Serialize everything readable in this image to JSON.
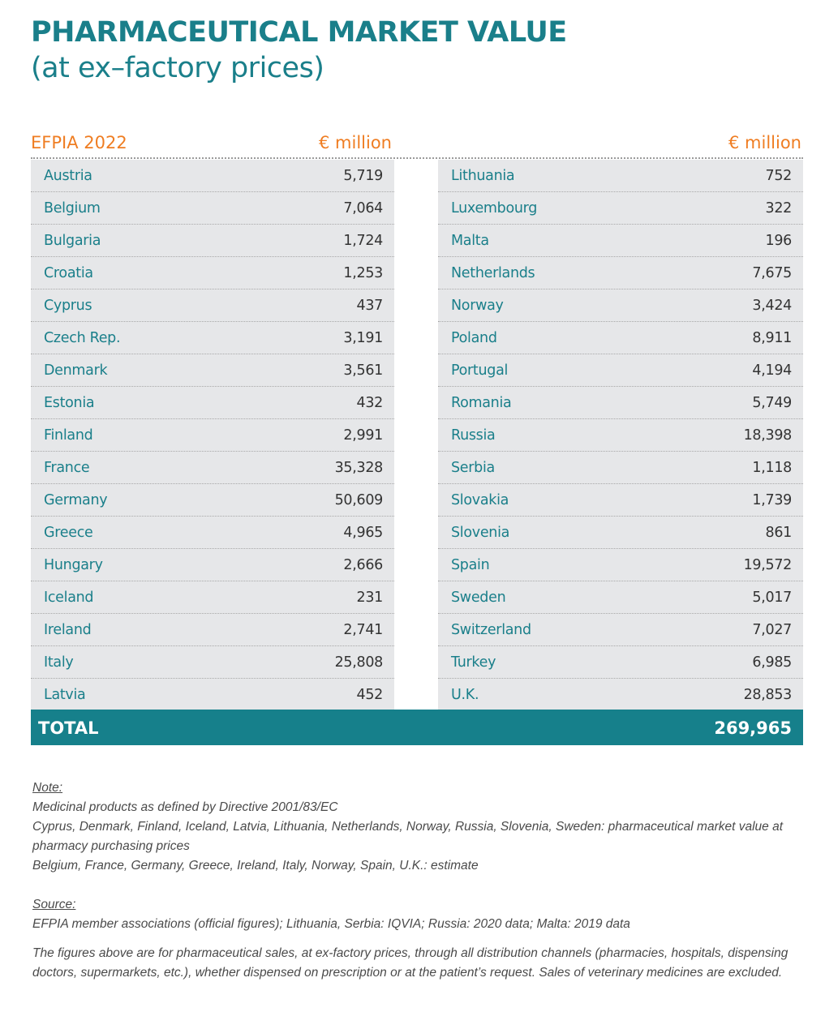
{
  "title": {
    "line1": "PHARMACEUTICAL MARKET VALUE",
    "line2": "(at ex–factory prices)"
  },
  "header": {
    "source_label": "EFPIA 2022",
    "unit_left": "€ million",
    "unit_right": "€ million"
  },
  "left_rows": [
    {
      "country": "Austria",
      "value": "5,719"
    },
    {
      "country": "Belgium",
      "value": "7,064"
    },
    {
      "country": "Bulgaria",
      "value": "1,724"
    },
    {
      "country": "Croatia",
      "value": "1,253"
    },
    {
      "country": "Cyprus",
      "value": "437"
    },
    {
      "country": "Czech Rep.",
      "value": "3,191"
    },
    {
      "country": "Denmark",
      "value": "3,561"
    },
    {
      "country": "Estonia",
      "value": "432"
    },
    {
      "country": "Finland",
      "value": "2,991"
    },
    {
      "country": "France",
      "value": "35,328"
    },
    {
      "country": "Germany",
      "value": "50,609"
    },
    {
      "country": "Greece",
      "value": "4,965"
    },
    {
      "country": "Hungary",
      "value": "2,666"
    },
    {
      "country": "Iceland",
      "value": "231"
    },
    {
      "country": "Ireland",
      "value": "2,741"
    },
    {
      "country": "Italy",
      "value": "25,808"
    },
    {
      "country": "Latvia",
      "value": "452"
    }
  ],
  "right_rows": [
    {
      "country": "Lithuania",
      "value": "752"
    },
    {
      "country": "Luxembourg",
      "value": "322"
    },
    {
      "country": "Malta",
      "value": "196"
    },
    {
      "country": "Netherlands",
      "value": "7,675"
    },
    {
      "country": "Norway",
      "value": "3,424"
    },
    {
      "country": "Poland",
      "value": "8,911"
    },
    {
      "country": "Portugal",
      "value": "4,194"
    },
    {
      "country": "Romania",
      "value": "5,749"
    },
    {
      "country": "Russia",
      "value": "18,398"
    },
    {
      "country": "Serbia",
      "value": "1,118"
    },
    {
      "country": "Slovakia",
      "value": "1,739"
    },
    {
      "country": "Slovenia",
      "value": "861"
    },
    {
      "country": "Spain",
      "value": "19,572"
    },
    {
      "country": "Sweden",
      "value": "5,017"
    },
    {
      "country": "Switzerland",
      "value": "7,027"
    },
    {
      "country": "Turkey",
      "value": "6,985"
    },
    {
      "country": "U.K.",
      "value": "28,853"
    }
  ],
  "total": {
    "label": "TOTAL",
    "value": "269,965"
  },
  "notes": {
    "note_heading": "Note:",
    "note_lines": [
      "Medicinal products as defined by Directive 2001/83/EC",
      "Cyprus, Denmark, Finland, Iceland, Latvia, Lithuania, Netherlands, Norway, Russia, Slovenia, Sweden: pharmaceutical market value at pharmacy purchasing prices",
      "Belgium, France, Germany, Greece, Ireland, Italy, Norway, Spain, U.K.: estimate"
    ],
    "source_heading": "Source:",
    "source_line": "EFPIA member associations (official figures); Lithuania, Serbia: IQVIA; Russia: 2020 data; Malta: 2019 data",
    "disclaimer": "The figures above are for pharmaceutical sales, at ex-factory prices, through all distribution channels (pharmacies, hospitals, dispensing doctors, supermarkets, etc.), whether dispensed on prescription or at the patient’s request. Sales of veterinary medicines are excluded."
  },
  "colors": {
    "teal": "#1a7f8a",
    "orange": "#ef7d22",
    "table_bg": "#e6e7e9",
    "total_bg": "#16808b"
  }
}
